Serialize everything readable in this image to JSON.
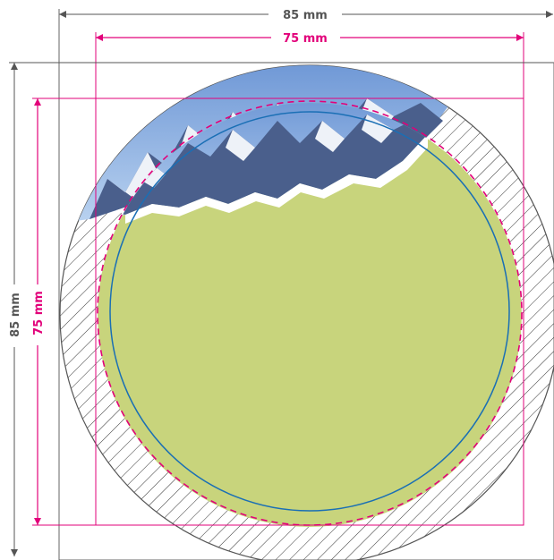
{
  "dimensions": {
    "outer_width_label": "85 mm",
    "outer_height_label": "85 mm",
    "inner_width_label": "75 mm",
    "inner_height_label": "75 mm"
  },
  "colors": {
    "outer_dimension": "#555555",
    "inner_dimension": "#e2007a",
    "cut_line": "#e2007a",
    "safe_line": "#1a6fb5",
    "fill": "#c8d47c",
    "bleed_outline": "#555555",
    "hatch": "#333333",
    "sky": "#8fb4e6"
  },
  "icons": {
    "mountain_image": "mountain-photo"
  }
}
